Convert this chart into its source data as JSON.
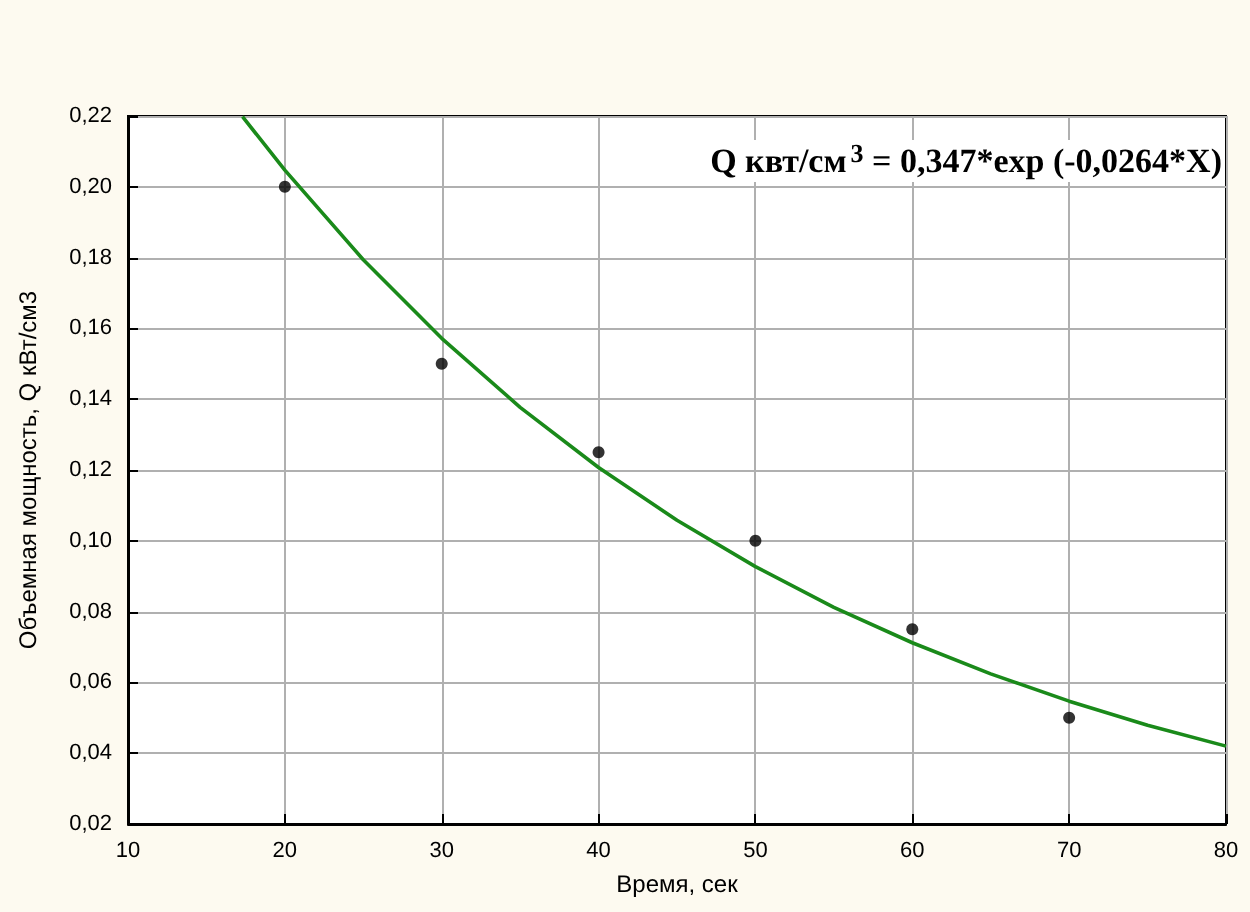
{
  "chart_data": {
    "type": "scatter",
    "xlabel": "Время, сек",
    "ylabel": "Объемная мощность, Q кВт/см3",
    "annotations": [
      "Q квт/см$^{3}$ = 0,347*exp (-0,0264*X)"
    ],
    "series": [
      {
        "color": "#000000",
        "marker": "circle",
        "x": [
          20,
          30,
          40,
          50,
          60,
          70
        ],
        "values": [
          0.2,
          0.15,
          0.125,
          0.1,
          0.075,
          0.05
        ]
      },
      {
        "type": "line",
        "color": "#1a8a1a",
        "marker": "none",
        "line_style": "solid",
        "x": [
          17.3,
          20,
          25,
          30,
          35,
          40,
          45,
          50,
          55,
          60,
          65,
          70,
          75,
          80
        ],
        "values": [
          0.2198,
          0.2047,
          0.1794,
          0.1572,
          0.1377,
          0.1207,
          0.1058,
          0.0927,
          0.0812,
          0.0712,
          0.0624,
          0.0547,
          0.0479,
          0.042
        ]
      }
    ],
    "xlim": [
      10,
      80
    ],
    "xticks": [
      10,
      20,
      30,
      40,
      50,
      60,
      70,
      80
    ],
    "ylim": [
      0.02,
      0.22
    ],
    "yticks": [
      {
        "value": 0.02,
        "label": "0,02"
      },
      {
        "value": 0.04,
        "label": "0,04"
      },
      {
        "value": 0.06,
        "label": "0,06"
      },
      {
        "value": 0.08,
        "label": "0,08"
      },
      {
        "value": 0.1,
        "label": "0,10"
      },
      {
        "value": 0.12,
        "label": "0,12"
      },
      {
        "value": 0.14,
        "label": "0,14"
      },
      {
        "value": 0.16,
        "label": "0,16"
      },
      {
        "value": 0.18,
        "label": "0,18"
      },
      {
        "value": 0.2,
        "label": "0,20"
      },
      {
        "value": 0.22,
        "label": "0,22"
      }
    ],
    "grid": true
  }
}
